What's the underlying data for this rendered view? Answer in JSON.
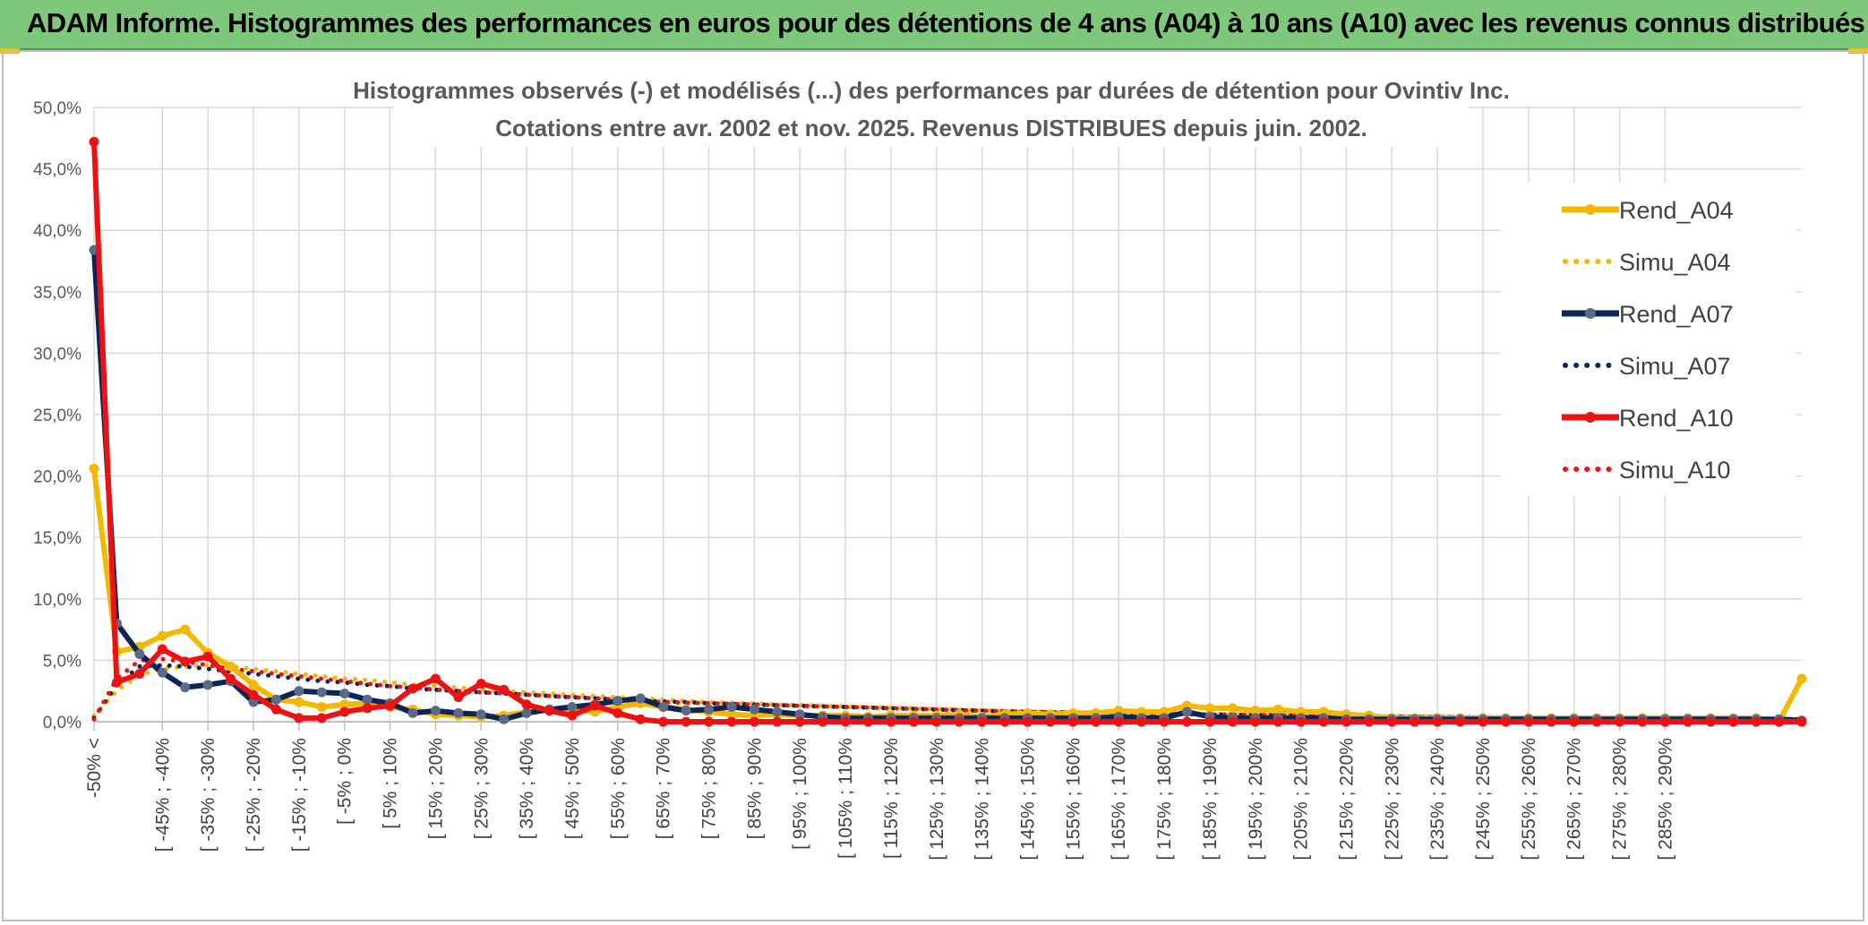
{
  "banner": {
    "title": "ADAM Informe. Histogrammes des performances en euros pour des détentions de 4 ans (A04) à 10 ans (A10) avec les revenus connus distribués",
    "color": "#7dc87a"
  },
  "chart_data": {
    "type": "line",
    "title": "Histogrammes observés (-) et modélisés (...) des performances par durées de détention pour Ovintiv Inc.",
    "subtitle": "Cotations entre avr. 2002 et nov. 2025. Revenus DISTRIBUES depuis juin. 2002.",
    "xlabel": "",
    "ylabel": "",
    "ylim": [
      0,
      50
    ],
    "y_ticks": [
      "0,0%",
      "5,0%",
      "10,0%",
      "15,0%",
      "20,0%",
      "25,0%",
      "30,0%",
      "35,0%",
      "40,0%",
      "45,0%",
      "50,0%"
    ],
    "x_ticks": [
      "-50% <",
      "[ -45% ; -40%",
      "[ -35% ; -30%",
      "[ -25% ; -20%",
      "[ -15% ; -10%",
      "[ -5% ; 0%",
      "[ 5% ; 10%",
      "[ 15% ; 20%",
      "[ 25% ; 30%",
      "[ 35% ; 40%",
      "[ 45% ; 50%",
      "[ 55% ; 60%",
      "[ 65% ; 70%",
      "[ 75% ; 80%",
      "[ 85% ; 90%",
      "[ 95% ; 100%",
      "[ 105% ; 110%",
      "[ 115% ; 120%",
      "[ 125% ; 130%",
      "[ 135% ; 140%",
      "[ 145% ; 150%",
      "[ 155% ; 160%",
      "[ 165% ; 170%",
      "[ 175% ; 180%",
      "[ 185% ; 190%",
      "[ 195% ; 200%",
      "[ 205% ; 210%",
      "[ 215% ; 220%",
      "[ 225% ; 230%",
      "[ 235% ; 240%",
      "[ 245% ; 250%",
      "[ 255% ; 260%",
      "[ 265% ; 270%",
      "[ 275% ; 280%",
      "[ 285% ; 290%"
    ],
    "legend_position": "right",
    "grid": true,
    "series": [
      {
        "name": "Rend_A04",
        "color": "#f4b800",
        "style": "solid",
        "markers": true,
        "values": [
          20.6,
          5.7,
          6.1,
          7.0,
          7.5,
          5.6,
          4.5,
          3.0,
          1.8,
          1.6,
          1.2,
          1.4,
          1.5,
          1.2,
          1.0,
          0.6,
          0.5,
          0.4,
          0.5,
          0.8,
          1.0,
          1.0,
          0.8,
          1.2,
          1.5,
          1.2,
          1.0,
          0.8,
          0.6,
          0.5,
          0.6,
          0.5,
          0.5,
          0.5,
          0.4,
          0.5,
          0.5,
          0.5,
          0.6,
          0.4,
          0.6,
          0.7,
          0.6,
          0.7,
          0.7,
          0.9,
          0.8,
          0.8,
          1.3,
          1.1,
          1.1,
          0.9,
          1.0,
          0.8,
          0.8,
          0.6,
          0.5,
          0.3,
          0.3,
          0.3,
          0.3,
          0.3,
          0.3,
          0.3,
          0.3,
          0.3,
          0.3,
          0.3,
          0.3,
          0.3,
          0.3,
          0.3,
          0.3,
          0.3,
          0.0,
          3.5
        ]
      },
      {
        "name": "Simu_A04",
        "color": "#f4b800",
        "style": "dotted",
        "markers": false,
        "values": [
          0.5,
          2.5,
          3.8,
          4.3,
          4.5,
          4.6,
          4.5,
          4.3,
          4.1,
          3.9,
          3.7,
          3.5,
          3.4,
          3.2,
          3.0,
          2.9,
          2.8,
          2.6,
          2.5,
          2.4,
          2.3,
          2.2,
          2.1,
          2.0,
          1.9,
          1.8,
          1.7,
          1.6,
          1.55,
          1.5,
          1.4,
          1.35,
          1.3,
          1.25,
          1.2,
          1.15,
          1.1,
          1.05,
          1.0,
          0.95,
          0.9,
          0.85,
          0.8,
          0.78,
          0.75,
          0.72,
          0.7,
          0.67,
          0.65,
          0.62,
          0.6,
          0.58,
          0.55,
          0.53,
          0.5,
          0.48,
          0.46,
          0.44,
          0.42,
          0.4,
          0.39,
          0.37,
          0.36,
          0.34,
          0.33,
          0.32,
          0.31,
          0.3,
          0.29,
          0.28,
          0.27,
          0.26,
          0.25,
          0.24,
          0.23,
          0.22
        ]
      },
      {
        "name": "Rend_A07",
        "color": "#0d2457",
        "style": "solid",
        "markers": true,
        "values": [
          38.4,
          8.0,
          5.5,
          4.0,
          2.8,
          3.0,
          3.3,
          1.6,
          1.8,
          2.5,
          2.4,
          2.3,
          1.8,
          1.5,
          0.7,
          0.9,
          0.7,
          0.6,
          0.2,
          0.7,
          1.0,
          1.2,
          1.4,
          1.7,
          1.9,
          1.2,
          0.9,
          1.0,
          1.2,
          1.0,
          0.8,
          0.6,
          0.4,
          0.3,
          0.3,
          0.3,
          0.3,
          0.3,
          0.3,
          0.3,
          0.3,
          0.3,
          0.3,
          0.3,
          0.3,
          0.4,
          0.3,
          0.3,
          0.8,
          0.4,
          0.3,
          0.3,
          0.3,
          0.3,
          0.3,
          0.2,
          0.2,
          0.2,
          0.2,
          0.2,
          0.2,
          0.2,
          0.2,
          0.2,
          0.2,
          0.2,
          0.2,
          0.2,
          0.2,
          0.2,
          0.2,
          0.2,
          0.2,
          0.2,
          0.2,
          0.1
        ]
      },
      {
        "name": "Simu_A07",
        "color": "#0d2457",
        "style": "dotted",
        "markers": false,
        "values": [
          0.3,
          3.0,
          4.5,
          4.6,
          4.5,
          4.3,
          4.1,
          3.9,
          3.7,
          3.5,
          3.3,
          3.2,
          3.0,
          2.9,
          2.7,
          2.6,
          2.5,
          2.4,
          2.3,
          2.2,
          2.1,
          2.0,
          1.9,
          1.8,
          1.7,
          1.65,
          1.6,
          1.5,
          1.45,
          1.4,
          1.35,
          1.3,
          1.25,
          1.2,
          1.15,
          1.1,
          1.05,
          1.0,
          0.95,
          0.9,
          0.85,
          0.8,
          0.78,
          0.75,
          0.72,
          0.7,
          0.67,
          0.65,
          0.62,
          0.6,
          0.58,
          0.55,
          0.53,
          0.5,
          0.48,
          0.46,
          0.44,
          0.42,
          0.4,
          0.39,
          0.37,
          0.36,
          0.34,
          0.33,
          0.32,
          0.31,
          0.3,
          0.29,
          0.28,
          0.27,
          0.26,
          0.25,
          0.24,
          0.23,
          0.22,
          0.21
        ]
      },
      {
        "name": "Rend_A10",
        "color": "#ee1111",
        "style": "solid",
        "markers": true,
        "values": [
          47.2,
          3.2,
          3.9,
          5.9,
          4.9,
          5.3,
          3.5,
          2.2,
          1.0,
          0.3,
          0.3,
          0.8,
          1.1,
          1.3,
          2.7,
          3.5,
          2.0,
          3.1,
          2.6,
          1.4,
          0.9,
          0.5,
          1.3,
          0.7,
          0.2,
          0.0,
          0.0,
          0.0,
          0.0,
          0.0,
          0.0,
          0.0,
          0.0,
          0.0,
          0.0,
          0.0,
          0.0,
          0.0,
          0.0,
          0.0,
          0.0,
          0.0,
          0.0,
          0.0,
          0.0,
          0.0,
          0.0,
          0.0,
          0.0,
          0.0,
          0.0,
          0.0,
          0.0,
          0.0,
          0.0,
          0.0,
          0.0,
          0.0,
          0.0,
          0.0,
          0.0,
          0.0,
          0.0,
          0.0,
          0.0,
          0.0,
          0.0,
          0.0,
          0.0,
          0.0,
          0.0,
          0.0,
          0.0,
          0.0,
          0.0,
          0.0
        ]
      },
      {
        "name": "Simu_A10",
        "color": "#ee1111",
        "style": "dotted",
        "markers": false,
        "values": [
          0.2,
          3.5,
          5.0,
          5.1,
          4.9,
          4.6,
          4.3,
          4.1,
          3.9,
          3.7,
          3.5,
          3.3,
          3.1,
          2.9,
          2.8,
          2.6,
          2.5,
          2.4,
          2.3,
          2.2,
          2.1,
          2.0,
          1.9,
          1.8,
          1.7,
          1.6,
          1.55,
          1.5,
          1.45,
          1.4,
          1.35,
          1.3,
          1.25,
          1.2,
          1.15,
          1.1,
          1.05,
          1.0,
          0.95,
          0.9,
          0.85,
          0.8,
          0.78,
          0.75,
          0.72,
          0.7,
          0.67,
          0.65,
          0.62,
          0.6,
          0.58,
          0.55,
          0.53,
          0.5,
          0.48,
          0.46,
          0.44,
          0.42,
          0.4,
          0.39,
          0.37,
          0.36,
          0.34,
          0.33,
          0.32,
          0.31,
          0.3,
          0.29,
          0.28,
          0.27,
          0.26,
          0.25,
          0.24,
          0.23,
          0.22,
          0.21
        ]
      }
    ]
  }
}
